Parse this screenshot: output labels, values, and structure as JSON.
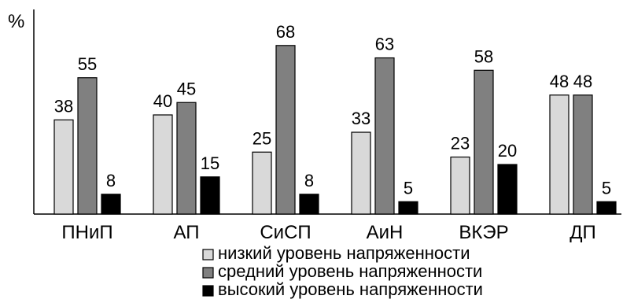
{
  "chart_data": {
    "type": "bar",
    "ylabel": "%",
    "ylim": [
      0,
      80
    ],
    "grid": false,
    "legend_placement": "bottom",
    "categories": [
      "ПНиП",
      "АП",
      "СиСП",
      "АиН",
      "ВКЭР",
      "ДП"
    ],
    "series": [
      {
        "name": "низкий уровень напряженности",
        "color": "#d9d9d9",
        "values": [
          38,
          40,
          25,
          33,
          23,
          48
        ]
      },
      {
        "name": "средний уровень напряженности",
        "color": "#808080",
        "values": [
          55,
          45,
          68,
          63,
          58,
          48
        ]
      },
      {
        "name": "высокий уровень напряженности",
        "color": "#000000",
        "values": [
          8,
          15,
          8,
          5,
          20,
          5
        ]
      }
    ]
  }
}
